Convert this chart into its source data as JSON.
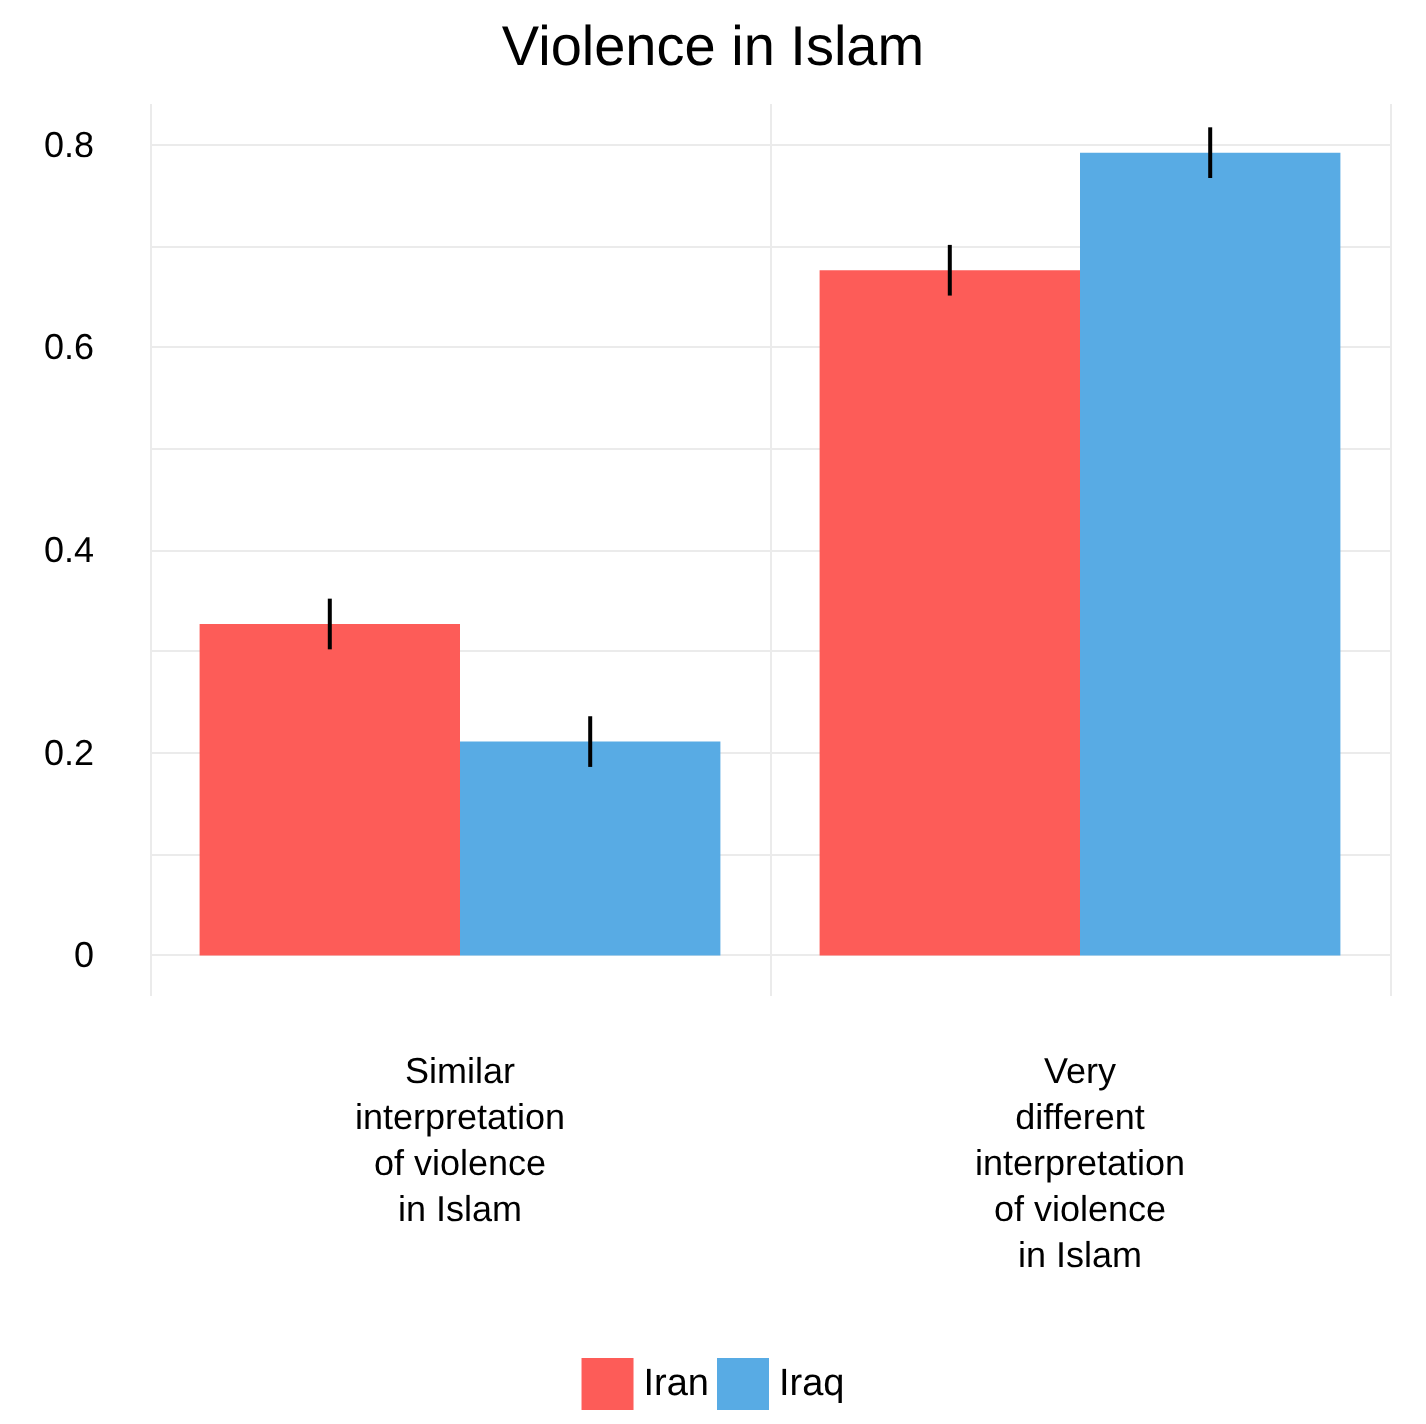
{
  "chart_data": {
    "type": "bar",
    "title": "Violence in Islam",
    "categories": [
      "Similar\ninterpretation\nof violence\nin Islam",
      "Very\ndifferent\ninterpretation\nof violence\nin Islam"
    ],
    "series": [
      {
        "name": "Iran",
        "color": "#fd5c58",
        "values": [
          0.327,
          0.676
        ],
        "errors": [
          0.025,
          0.025
        ]
      },
      {
        "name": "Iraq",
        "color": "#58abe4",
        "values": [
          0.211,
          0.792
        ],
        "errors": [
          0.025,
          0.025
        ]
      }
    ],
    "ylim": [
      -0.04,
      0.84
    ],
    "yticks": [
      0,
      {
        "value": 0.1,
        "label": null
      },
      0.2,
      {
        "value": 0.3,
        "label": null
      },
      0.4,
      {
        "value": 0.5,
        "label": null
      },
      0.6,
      {
        "value": 0.7,
        "label": null
      },
      0.8
    ],
    "grid": true,
    "legend": "bottom"
  }
}
